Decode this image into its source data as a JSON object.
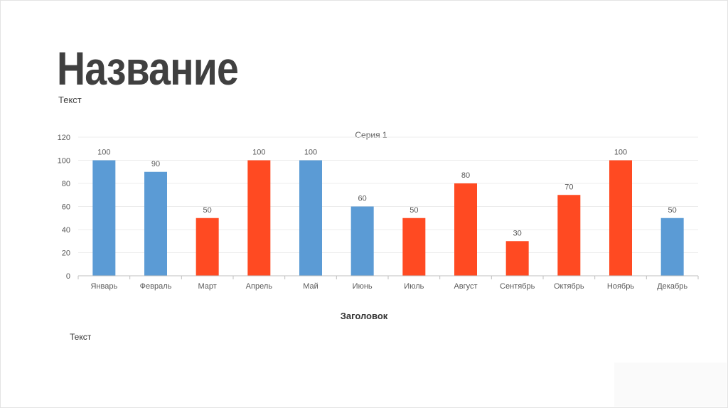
{
  "slide": {
    "title": "Название",
    "subtitle": "Текст",
    "heading": "Заголовок",
    "body_text": "Текст"
  },
  "colors": {
    "blue": "#5b9bd5",
    "red": "#ff4a22"
  },
  "chart_data": {
    "type": "bar",
    "title": "Серия 1",
    "xlabel": "",
    "ylabel": "",
    "categories": [
      "Январь",
      "Февраль",
      "Март",
      "Апрель",
      "Май",
      "Июнь",
      "Июль",
      "Август",
      "Сентябрь",
      "Октябрь",
      "Ноябрь",
      "Декабрь"
    ],
    "series": [
      {
        "values": [
          100,
          90,
          50,
          100,
          100,
          60,
          50,
          80,
          30,
          70,
          100,
          50
        ],
        "bar_colors": [
          "blue",
          "blue",
          "red",
          "red",
          "blue",
          "blue",
          "red",
          "red",
          "red",
          "red",
          "red",
          "blue"
        ]
      }
    ],
    "ylim": [
      0,
      120
    ],
    "yticks": [
      0,
      20,
      40,
      60,
      80,
      100,
      120
    ],
    "data_labels": true,
    "grid": true,
    "legend": "none"
  }
}
